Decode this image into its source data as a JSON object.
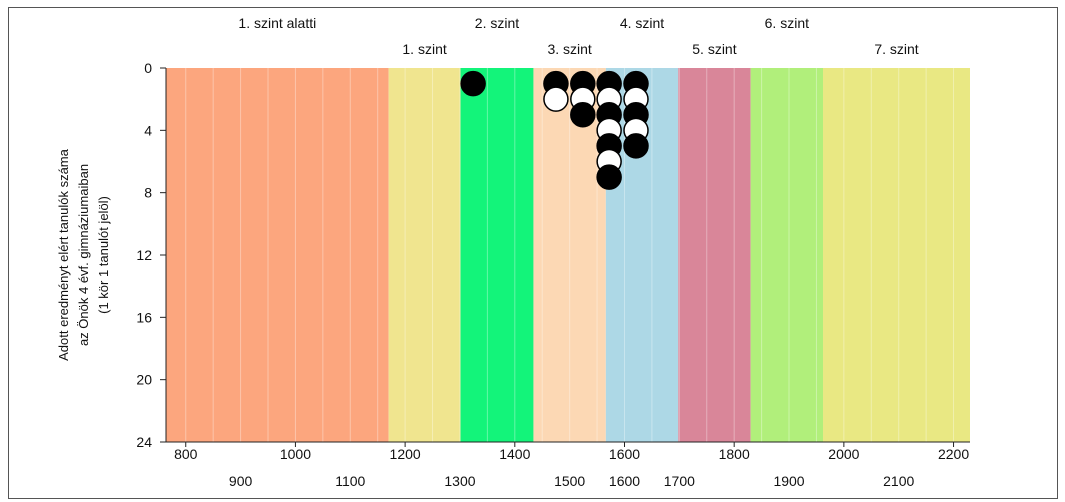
{
  "chart_data": {
    "type": "scatter",
    "title": "",
    "xlabel": "",
    "ylabel_lines": [
      "Adott eredményt elért tanulók száma",
      "az Önök 4 évf. gimnáziumaiban",
      "(1 kör 1 tanulót jelöl)"
    ],
    "xlim": [
      764,
      2230
    ],
    "ylim": [
      0,
      24
    ],
    "y_inverted": true,
    "y_ticks": [
      "0",
      "4",
      "8",
      "12",
      "16",
      "20",
      "24"
    ],
    "x_ticks_upper_row": [
      "800",
      "1000",
      "1200",
      "1400",
      "1600",
      "1800",
      "2000",
      "2200"
    ],
    "x_ticks_lower_row": [
      "900",
      "1100",
      "1300",
      "1500",
      "1600",
      "1700",
      "1900",
      "2100"
    ],
    "levels": [
      {
        "label": "1. szint alatti",
        "from": 764,
        "to": 1170,
        "color": "#FCA67E",
        "row": "top"
      },
      {
        "label": "1. szint",
        "from": 1170,
        "to": 1301,
        "color": "#F0E58F",
        "row": "bottom"
      },
      {
        "label": "2. szint",
        "from": 1301,
        "to": 1434,
        "color": "#13F47A",
        "row": "top"
      },
      {
        "label": "3. szint",
        "from": 1434,
        "to": 1566,
        "color": "#FCD8B4",
        "row": "bottom"
      },
      {
        "label": "4. szint",
        "from": 1566,
        "to": 1698,
        "color": "#ADD8E6",
        "row": "top"
      },
      {
        "label": "5. szint",
        "from": 1698,
        "to": 1830,
        "color": "#D98699",
        "row": "bottom"
      },
      {
        "label": "6. szint",
        "from": 1830,
        "to": 1962,
        "color": "#B1EF7B",
        "row": "top"
      },
      {
        "label": "7. szint",
        "from": 1962,
        "to": 2230,
        "color": "#E9E883",
        "row": "bottom"
      }
    ],
    "grid_x": [
      800,
      850,
      900,
      950,
      1000,
      1050,
      1100,
      1150,
      1200,
      1250,
      1300,
      1350,
      1400,
      1450,
      1500,
      1550,
      1600,
      1650,
      1700,
      1750,
      1800,
      1850,
      1900,
      1950,
      2000,
      2050,
      2100,
      2150,
      2200
    ],
    "points": [
      {
        "x": 1324,
        "y": 1,
        "filled": true
      },
      {
        "x": 1475,
        "y": 1,
        "filled": true
      },
      {
        "x": 1475,
        "y": 2,
        "filled": false
      },
      {
        "x": 1524,
        "y": 1,
        "filled": true
      },
      {
        "x": 1524,
        "y": 2,
        "filled": false
      },
      {
        "x": 1524,
        "y": 3,
        "filled": true
      },
      {
        "x": 1572,
        "y": 1,
        "filled": true
      },
      {
        "x": 1572,
        "y": 2,
        "filled": false
      },
      {
        "x": 1572,
        "y": 3,
        "filled": true
      },
      {
        "x": 1572,
        "y": 4,
        "filled": false
      },
      {
        "x": 1572,
        "y": 5,
        "filled": true
      },
      {
        "x": 1572,
        "y": 6,
        "filled": false
      },
      {
        "x": 1572,
        "y": 7,
        "filled": true
      },
      {
        "x": 1621,
        "y": 1,
        "filled": true
      },
      {
        "x": 1621,
        "y": 2,
        "filled": false
      },
      {
        "x": 1621,
        "y": 3,
        "filled": true
      },
      {
        "x": 1621,
        "y": 4,
        "filled": false
      },
      {
        "x": 1621,
        "y": 5,
        "filled": true
      }
    ],
    "grid": false,
    "legend": "none"
  }
}
